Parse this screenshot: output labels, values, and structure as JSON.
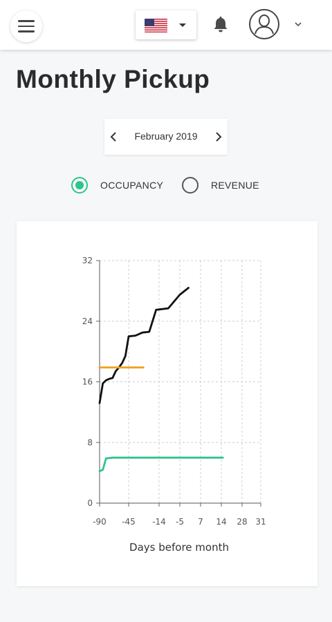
{
  "header": {
    "language": "en-US",
    "icons": {
      "menu": "hamburger-menu-icon",
      "flag": "us-flag-icon",
      "notifications": "bell-icon",
      "user": "user-avatar-icon",
      "user_menu": "chevron-down-icon"
    }
  },
  "page": {
    "title": "Monthly Pickup"
  },
  "month_nav": {
    "label": "February 2019"
  },
  "metric_toggle": {
    "options": [
      {
        "label": "OCCUPANCY",
        "selected": true
      },
      {
        "label": "REVENUE",
        "selected": false
      }
    ],
    "accent_color": "#2ec48b"
  },
  "chart_data": {
    "type": "line",
    "xlabel": "Days before month",
    "ylabel": "",
    "x_tick_labels": [
      "-90",
      "-45",
      "-14",
      "-5",
      "7",
      "14",
      "28",
      "31"
    ],
    "y_ticks": [
      0,
      8,
      16,
      24,
      32
    ],
    "ylim": [
      0,
      32
    ],
    "grid": true,
    "series": [
      {
        "color": "#111111",
        "points": [
          [
            -90,
            13.2
          ],
          [
            -85,
            15.8
          ],
          [
            -80,
            16.2
          ],
          [
            -75,
            16.4
          ],
          [
            -70,
            16.5
          ],
          [
            -65,
            17.4
          ],
          [
            -60,
            17.9
          ],
          [
            -55,
            18.5
          ],
          [
            -50,
            19.4
          ],
          [
            -45,
            22.0
          ],
          [
            -38,
            22.1
          ],
          [
            -31,
            22.5
          ],
          [
            -24,
            22.6
          ],
          [
            -17,
            25.5
          ],
          [
            -10,
            25.7
          ],
          [
            -5,
            27.5
          ],
          [
            0,
            28.4
          ]
        ]
      },
      {
        "color": "#f0a21f",
        "points": [
          [
            -90,
            17.9
          ],
          [
            -30,
            17.9
          ]
        ]
      },
      {
        "color": "#2ec48b",
        "points": [
          [
            -90,
            4.2
          ],
          [
            -85,
            4.4
          ],
          [
            -80,
            5.9
          ],
          [
            -70,
            6.0
          ],
          [
            -40,
            6.0
          ],
          [
            0,
            6.0
          ],
          [
            15,
            6.0
          ]
        ]
      }
    ]
  }
}
